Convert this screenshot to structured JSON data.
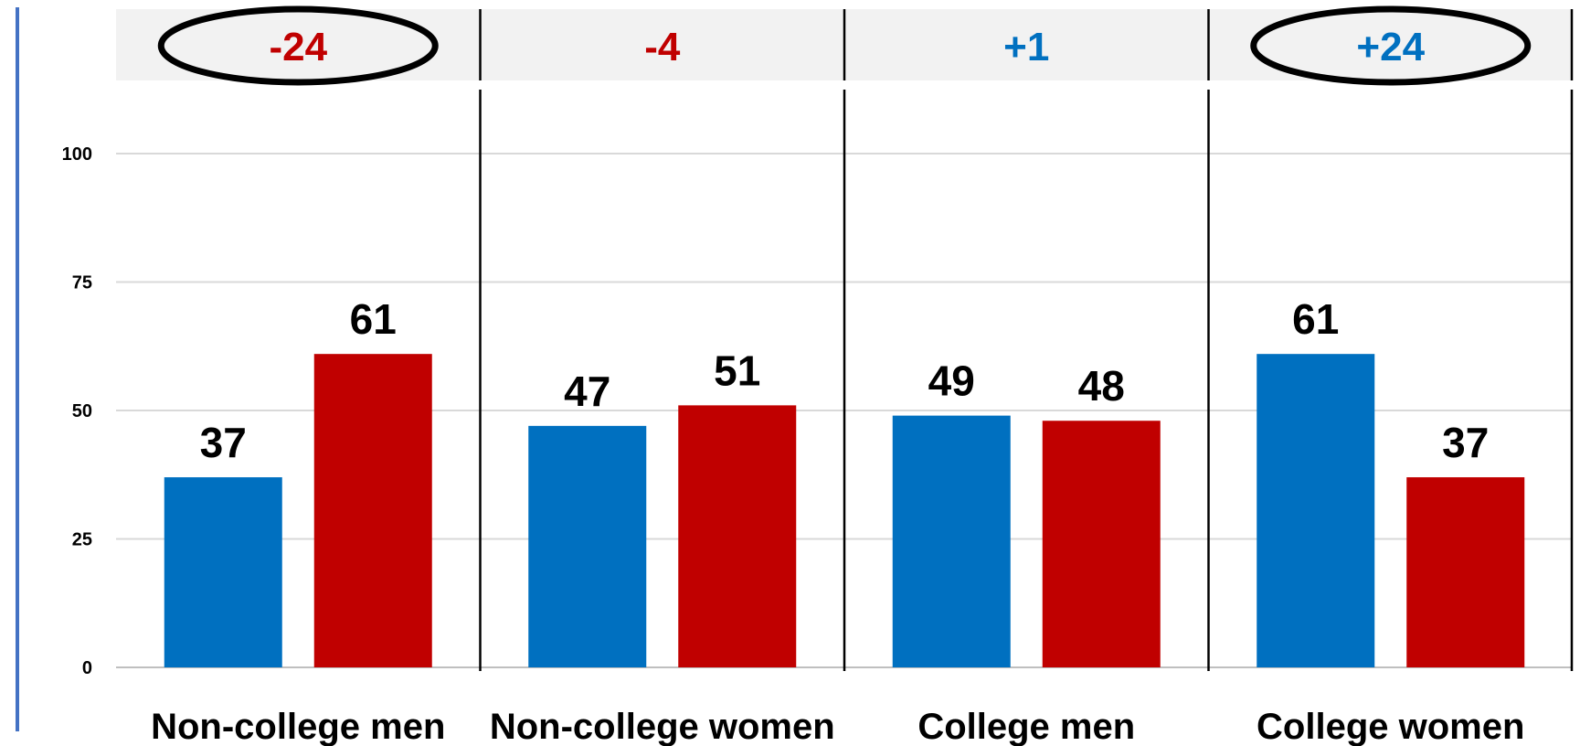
{
  "chart_data": {
    "type": "bar",
    "categories": [
      "Non-college men",
      "Non-college women",
      "College men",
      "College women"
    ],
    "series": [
      {
        "values": [
          37,
          47,
          49,
          61
        ],
        "color": "#0070C0"
      },
      {
        "values": [
          61,
          51,
          48,
          37
        ],
        "color": "#C00000"
      }
    ],
    "margins": [
      {
        "label": "-24",
        "color": "#C00000",
        "circled": true
      },
      {
        "label": "-4",
        "color": "#C00000",
        "circled": false
      },
      {
        "label": "+1",
        "color": "#0070C0",
        "circled": false
      },
      {
        "label": "+24",
        "color": "#0070C0",
        "circled": true
      }
    ],
    "yticks": [
      "0",
      "25",
      "50",
      "75",
      "100"
    ],
    "ylim": [
      0,
      100
    ],
    "grid": true,
    "legend": "none"
  }
}
